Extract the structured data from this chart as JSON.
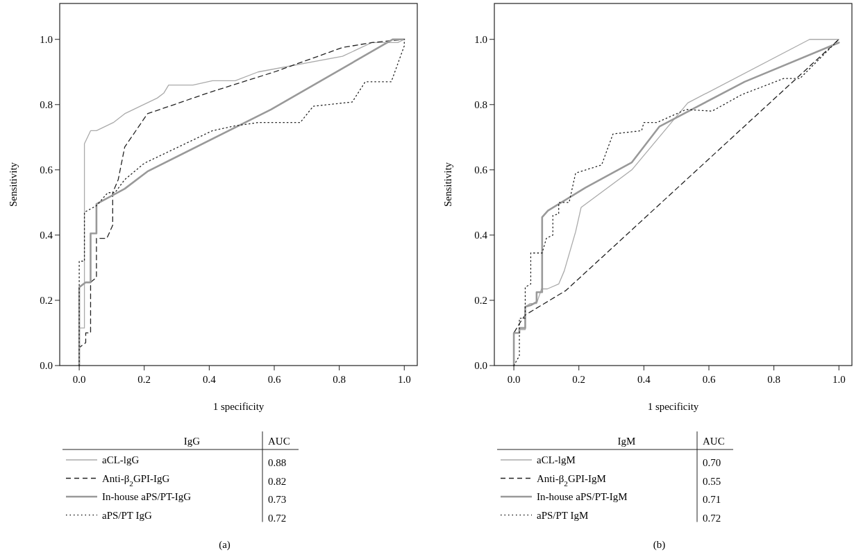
{
  "chart_data": [
    {
      "type": "line",
      "xlabel": "1 specificity",
      "ylabel": "Sensitivity",
      "legend_title": "IgG",
      "legend": "bottom",
      "grid": false,
      "xlim": [
        -0.06,
        1.04
      ],
      "ylim": [
        0,
        1.11
      ],
      "xticks": [
        {
          "value": 0,
          "label": "0.0"
        },
        {
          "value": 0.2,
          "label": "0.2"
        },
        {
          "value": 0.4,
          "label": "0.4"
        },
        {
          "value": 0.6,
          "label": "0.6"
        },
        {
          "value": 0.8,
          "label": "0.8"
        },
        {
          "value": 1,
          "label": "1.0"
        }
      ],
      "yticks": [
        {
          "value": 0,
          "label": "0.0"
        },
        {
          "value": 0.2,
          "label": "0.2"
        },
        {
          "value": 0.4,
          "label": "0.4"
        },
        {
          "value": 0.6,
          "label": "0.6"
        },
        {
          "value": 0.8,
          "label": "0.8"
        },
        {
          "value": 1,
          "label": "1.0"
        }
      ],
      "annotations": [
        "(a)",
        "AUC",
        "0.88",
        "0.82",
        "0.73",
        "0.72"
      ],
      "series": [
        {
          "name": "aCL-lgG",
          "color": "#aaaaaa",
          "line_style": "solid",
          "x": [
            0,
            0,
            0.016,
            0.016,
            0.035,
            0.053,
            0.105,
            0.14,
            0.24,
            0.26,
            0.275,
            0.35,
            0.41,
            0.48,
            0.55,
            0.81,
            0.9,
            0.98,
            1
          ],
          "values": [
            0,
            0.115,
            0.115,
            0.68,
            0.72,
            0.72,
            0.745,
            0.772,
            0.82,
            0.835,
            0.86,
            0.86,
            0.873,
            0.873,
            0.9,
            0.948,
            0.99,
            0.99,
            1
          ]
        },
        {
          "name": "Anti-β$_{2}$GPI-IgG",
          "color": "#222222",
          "line_style": "dashed",
          "x": [
            0,
            0,
            0.02,
            0.02,
            0.035,
            0.035,
            0.053,
            0.053,
            0.085,
            0.103,
            0.103,
            0.12,
            0.14,
            0.21,
            0.4,
            0.6,
            0.81,
            0.9,
            1
          ],
          "values": [
            0,
            0.055,
            0.07,
            0.1,
            0.1,
            0.255,
            0.27,
            0.39,
            0.39,
            0.43,
            0.53,
            0.57,
            0.67,
            0.772,
            0.837,
            0.9,
            0.975,
            0.99,
            1
          ]
        },
        {
          "name": "In-house aPS/PT-IgG",
          "color": "#999999",
          "line_style": "solid",
          "x": [
            0,
            0,
            0.02,
            0.035,
            0.035,
            0.053,
            0.053,
            0.14,
            0.21,
            0.59,
            0.965,
            1
          ],
          "values": [
            0,
            0.24,
            0.255,
            0.255,
            0.405,
            0.405,
            0.495,
            0.542,
            0.595,
            0.785,
            1,
            1
          ]
        },
        {
          "name": "aPS/PT IgG",
          "color": "#222222",
          "line_style": "dotted",
          "x": [
            0,
            0,
            0.016,
            0.016,
            0.053,
            0.088,
            0.11,
            0.14,
            0.2,
            0.41,
            0.48,
            0.55,
            0.68,
            0.72,
            0.84,
            0.88,
            0.96,
            1,
            1
          ],
          "values": [
            0,
            0.32,
            0.32,
            0.47,
            0.49,
            0.53,
            0.53,
            0.57,
            0.62,
            0.72,
            0.735,
            0.745,
            0.745,
            0.795,
            0.808,
            0.87,
            0.87,
            0.98,
            1
          ]
        }
      ]
    },
    {
      "type": "line",
      "xlabel": "1 specificity",
      "ylabel": "Sensitivity",
      "legend_title": "IgM",
      "legend": "bottom",
      "grid": false,
      "xlim": [
        -0.06,
        1.04
      ],
      "ylim": [
        0,
        1.11
      ],
      "xticks": [
        {
          "value": 0,
          "label": "0.0"
        },
        {
          "value": 0.2,
          "label": "0.2"
        },
        {
          "value": 0.4,
          "label": "0.4"
        },
        {
          "value": 0.6,
          "label": "0.6"
        },
        {
          "value": 0.8,
          "label": "0.8"
        },
        {
          "value": 1,
          "label": "1.0"
        }
      ],
      "yticks": [
        {
          "value": 0,
          "label": "0.0"
        },
        {
          "value": 0.2,
          "label": "0.2"
        },
        {
          "value": 0.4,
          "label": "0.4"
        },
        {
          "value": 0.6,
          "label": "0.6"
        },
        {
          "value": 0.8,
          "label": "0.8"
        },
        {
          "value": 1,
          "label": "1.0"
        }
      ],
      "annotations": [
        "(b)",
        "AUC",
        "0.70",
        "0.55",
        "0.71",
        "0.72"
      ],
      "series": [
        {
          "name": "aCL-lgM",
          "color": "#aaaaaa",
          "line_style": "solid",
          "x": [
            0,
            0,
            0.017,
            0.017,
            0.035,
            0.035,
            0.05,
            0.07,
            0.085,
            0.103,
            0.138,
            0.155,
            0.19,
            0.207,
            0.363,
            0.535,
            0.91,
            1
          ],
          "values": [
            0,
            0.1,
            0.1,
            0.11,
            0.11,
            0.18,
            0.19,
            0.19,
            0.235,
            0.235,
            0.25,
            0.29,
            0.41,
            0.485,
            0.6,
            0.805,
            1,
            1
          ]
        },
        {
          "name": "Anti-β$_{2}$GPI-IgM",
          "color": "#222222",
          "line_style": "dashed",
          "x": [
            0,
            0,
            0.018,
            0.035,
            0.16,
            1
          ],
          "values": [
            0,
            0.1,
            0.13,
            0.155,
            0.23,
            1
          ]
        },
        {
          "name": "In-house aPS/PT-IgM",
          "color": "#999999",
          "line_style": "solid",
          "x": [
            0,
            0,
            0.017,
            0.017,
            0.035,
            0.035,
            0.052,
            0.07,
            0.07,
            0.087,
            0.087,
            0.105,
            0.22,
            0.363,
            0.448,
            0.71,
            1
          ],
          "values": [
            0,
            0.1,
            0.1,
            0.115,
            0.115,
            0.18,
            0.185,
            0.195,
            0.225,
            0.225,
            0.455,
            0.475,
            0.545,
            0.623,
            0.733,
            0.87,
            0.99
          ]
        },
        {
          "name": "aPS/PT IgM",
          "color": "#222222",
          "line_style": "dotted",
          "x": [
            0,
            0.017,
            0.017,
            0.035,
            0.035,
            0.052,
            0.052,
            0.087,
            0.1,
            0.12,
            0.12,
            0.138,
            0.138,
            0.17,
            0.19,
            0.27,
            0.305,
            0.393,
            0.4,
            0.44,
            0.53,
            0.61,
            0.7,
            0.83,
            0.88,
            0.96,
            1
          ],
          "values": [
            0,
            0.03,
            0.145,
            0.145,
            0.24,
            0.25,
            0.345,
            0.345,
            0.39,
            0.4,
            0.46,
            0.465,
            0.5,
            0.5,
            0.59,
            0.615,
            0.71,
            0.72,
            0.745,
            0.745,
            0.785,
            0.78,
            0.83,
            0.88,
            0.88,
            0.96,
            1
          ]
        }
      ]
    }
  ]
}
